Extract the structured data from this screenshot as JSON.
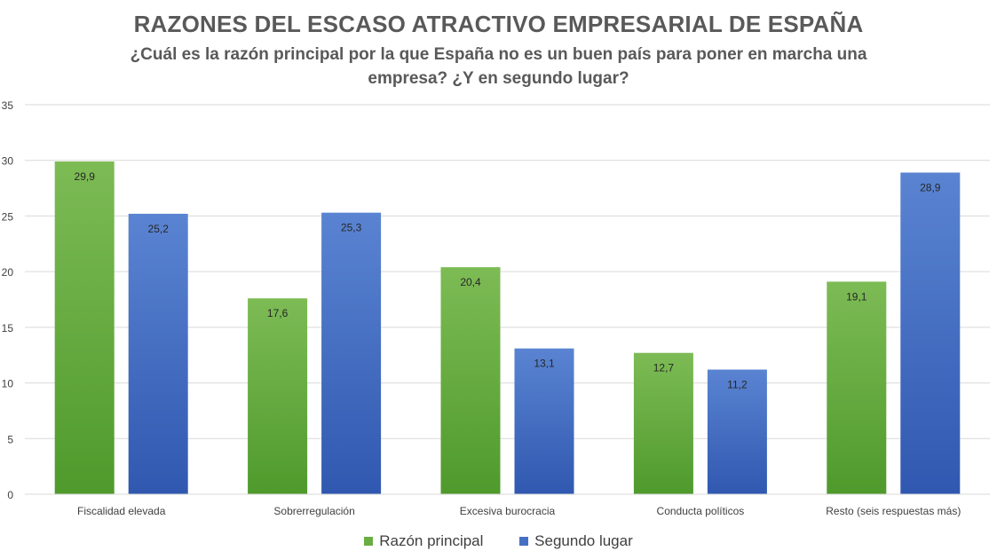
{
  "chart_data": {
    "type": "bar",
    "title": "RAZONES DEL ESCASO ATRACTIVO EMPRESARIAL DE ESPAÑA",
    "subtitle": "¿Cuál es la razón principal por la que España no es un buen país para poner en marcha una empresa? ¿Y en segundo lugar?",
    "categories": [
      "Fiscalidad elevada",
      "Sobrerregulación",
      "Excesiva burocracia",
      "Conducta políticos",
      "Resto (seis respuestas más)"
    ],
    "series": [
      {
        "name": "Razón principal",
        "values": [
          29.9,
          17.6,
          20.4,
          12.7,
          19.1
        ],
        "labels": [
          "29,9",
          "17,6",
          "20,4",
          "12,7",
          "19,1"
        ],
        "color": "#6aad45",
        "color_light": "#7dbb55",
        "color_dark": "#4f9a2c"
      },
      {
        "name": "Segundo lugar",
        "values": [
          25.2,
          25.3,
          13.1,
          11.2,
          28.9
        ],
        "labels": [
          "25,2",
          "25,3",
          "13,1",
          "11,2",
          "28,9"
        ],
        "color": "#4670c4",
        "color_light": "#5a84d2",
        "color_dark": "#3058b0"
      }
    ],
    "ylim": [
      0,
      35
    ],
    "yticks": [
      0,
      5,
      10,
      15,
      20,
      25,
      30,
      35
    ],
    "grid": true,
    "legend_position": "bottom"
  }
}
